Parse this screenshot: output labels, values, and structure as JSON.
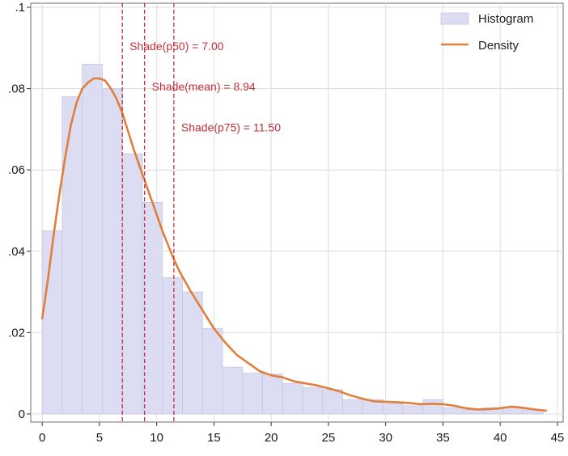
{
  "chart_data": {
    "type": "histogram-with-density",
    "xlim": [
      -1,
      45.5
    ],
    "ylim": [
      -0.002,
      0.101
    ],
    "x_ticks": [
      0,
      5,
      10,
      15,
      20,
      25,
      30,
      35,
      40,
      45
    ],
    "x_tick_labels": [
      "0",
      "5",
      "10",
      "15",
      "20",
      "25",
      "30",
      "35",
      "40",
      "45"
    ],
    "y_ticks": [
      0,
      0.02,
      0.04,
      0.06,
      0.08,
      0.1
    ],
    "y_tick_labels": [
      "0",
      ".02",
      ".04",
      ".06",
      ".08",
      ".1"
    ],
    "grid": true,
    "legend": {
      "position": "top-right",
      "items": [
        {
          "label": "Histogram",
          "type": "bar",
          "color": "#dcdcf2"
        },
        {
          "label": "Density",
          "type": "line",
          "color": "#e07f3c"
        }
      ]
    },
    "histogram": {
      "name": "Histogram",
      "color": "#dcdcf2",
      "edge_color": "#c6c6e2",
      "bin_edges": [
        0,
        1.75,
        3.5,
        5.25,
        7,
        8.75,
        10.5,
        12.25,
        14,
        15.75,
        17.5,
        19.25,
        21,
        22.75,
        24.5,
        26.25,
        28,
        29.75,
        31.5,
        33.25,
        35,
        36.75,
        38.5,
        40.25,
        42,
        43.75
      ],
      "values": [
        0.045,
        0.078,
        0.086,
        0.08,
        0.064,
        0.052,
        0.0335,
        0.03,
        0.021,
        0.0115,
        0.01,
        0.0098,
        0.0075,
        0.0065,
        0.006,
        0.0035,
        0.0035,
        0.0025,
        0.002,
        0.0035,
        0.0015,
        0.001,
        0.0015,
        0.0015,
        0.001
      ]
    },
    "density": {
      "name": "Density",
      "color": "#e07f3c",
      "x": [
        0,
        0.5,
        1,
        1.5,
        2,
        2.5,
        3,
        3.5,
        4,
        4.5,
        5,
        5.5,
        6,
        6.5,
        7,
        7.5,
        8,
        8.5,
        9,
        9.5,
        10,
        10.5,
        11,
        11.5,
        12,
        13,
        14,
        15,
        16,
        17,
        18,
        19,
        20,
        21,
        22,
        23,
        24,
        25,
        26,
        27,
        28,
        29,
        30,
        31,
        32,
        33,
        34,
        35,
        36,
        37,
        38,
        39,
        40,
        41,
        42,
        43,
        44
      ],
      "y": [
        0.0235,
        0.033,
        0.044,
        0.054,
        0.063,
        0.071,
        0.0765,
        0.08,
        0.0815,
        0.0825,
        0.0825,
        0.082,
        0.08,
        0.0775,
        0.074,
        0.0695,
        0.065,
        0.061,
        0.057,
        0.053,
        0.049,
        0.045,
        0.0415,
        0.038,
        0.035,
        0.03,
        0.0255,
        0.021,
        0.0175,
        0.0145,
        0.0125,
        0.0105,
        0.0095,
        0.009,
        0.008,
        0.0075,
        0.007,
        0.0063,
        0.0055,
        0.0045,
        0.0037,
        0.0031,
        0.003,
        0.0029,
        0.0027,
        0.0024,
        0.0025,
        0.0024,
        0.002,
        0.0014,
        0.0011,
        0.0012,
        0.0014,
        0.0018,
        0.0015,
        0.0011,
        0.0008
      ]
    },
    "reference_lines": [
      {
        "x": 7.0,
        "label": "Shade(p50) = 7.00",
        "label_y": 0.0895
      },
      {
        "x": 8.94,
        "label": "Shade(mean) = 8.94",
        "label_y": 0.0795
      },
      {
        "x": 11.5,
        "label": "Shade(p75) = 11.50",
        "label_y": 0.0695
      }
    ],
    "reference_line_color": "#c2313a"
  }
}
